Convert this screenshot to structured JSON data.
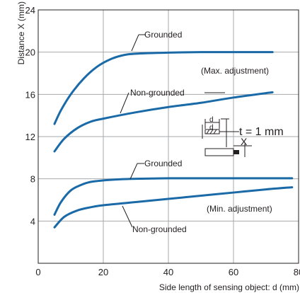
{
  "chart_data": {
    "type": "line",
    "title": "",
    "xlabel": "Side length of sensing object: d (mm)",
    "ylabel": "Distance X (mm)",
    "xlim": [
      0,
      80
    ],
    "ylim": [
      0,
      24
    ],
    "xticks": [
      0,
      20,
      40,
      60,
      80
    ],
    "yticks": [
      4,
      8,
      12,
      16,
      20,
      24
    ],
    "grid": true,
    "series": [
      {
        "x": [
          5,
          7,
          10,
          14,
          18,
          22,
          26,
          30,
          40,
          50,
          60,
          72
        ],
        "y": [
          13.2,
          14.5,
          16.0,
          17.5,
          18.6,
          19.3,
          19.7,
          19.85,
          19.95,
          20.0,
          20.0,
          20.0
        ]
      },
      {
        "x": [
          5,
          8,
          12,
          16,
          20,
          30,
          40,
          50,
          60,
          72
        ],
        "y": [
          10.6,
          11.8,
          12.8,
          13.4,
          13.7,
          14.3,
          14.8,
          15.2,
          15.7,
          16.2
        ]
      },
      {
        "x": [
          5,
          7,
          10,
          13,
          16,
          20,
          25,
          30,
          40,
          50,
          60,
          70,
          78
        ],
        "y": [
          4.6,
          5.8,
          6.9,
          7.4,
          7.7,
          7.85,
          7.95,
          8.0,
          8.05,
          8.05,
          8.05,
          8.05,
          8.05
        ]
      },
      {
        "x": [
          5,
          8,
          12,
          16,
          20,
          30,
          40,
          50,
          60,
          70,
          78
        ],
        "y": [
          3.4,
          4.4,
          5.0,
          5.3,
          5.5,
          5.8,
          6.1,
          6.4,
          6.7,
          7.0,
          7.2
        ]
      }
    ],
    "annotations": {
      "grounded_upper": "Grounded",
      "nongrounded_upper": "Non-grounded",
      "max_adjustment": "(Max. adjustment)",
      "grounded_lower": "Grounded",
      "min_adjustment": "(Min. adjustment)",
      "nongrounded_lower": "Non-grounded",
      "thickness": "t = 1 mm",
      "inset_d": "d",
      "inset_x": "X"
    }
  }
}
